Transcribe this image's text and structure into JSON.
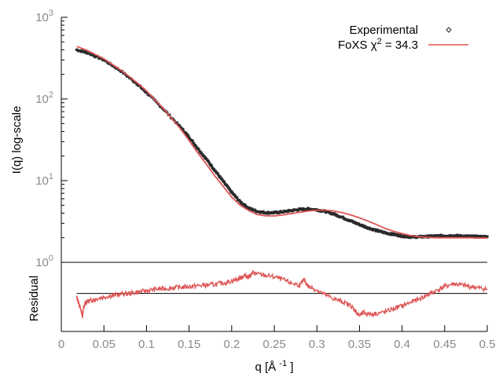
{
  "chart_data": [
    {
      "type": "scatter",
      "panel": "main",
      "ylabel": "I(q) log-scale",
      "xlim": [
        0,
        0.5
      ],
      "ylim": [
        1,
        1000
      ],
      "y_scale": "log",
      "y_tick_labels": [
        {
          "base": "10",
          "exp": "0"
        },
        {
          "base": "10",
          "exp": "1"
        },
        {
          "base": "10",
          "exp": "2"
        },
        {
          "base": "10",
          "exp": "3"
        }
      ],
      "legend_position": "top-right",
      "grid": false,
      "series": [
        {
          "name": "Experimental",
          "style": "points",
          "color": "#2a2a2a",
          "x": [
            0.018,
            0.03,
            0.05,
            0.07,
            0.09,
            0.1,
            0.12,
            0.14,
            0.15,
            0.16,
            0.17,
            0.18,
            0.19,
            0.2,
            0.21,
            0.22,
            0.23,
            0.24,
            0.25,
            0.26,
            0.27,
            0.28,
            0.29,
            0.3,
            0.31,
            0.32,
            0.33,
            0.34,
            0.35,
            0.36,
            0.37,
            0.38,
            0.39,
            0.4,
            0.41,
            0.42,
            0.43,
            0.44,
            0.45,
            0.46,
            0.47,
            0.48,
            0.49,
            0.5
          ],
          "y": [
            400,
            370,
            300,
            220,
            150,
            120,
            75,
            45,
            34,
            25,
            18.5,
            13.5,
            9.8,
            7.2,
            5.5,
            4.6,
            4.2,
            4.05,
            4.05,
            4.15,
            4.3,
            4.45,
            4.5,
            4.4,
            4.2,
            3.9,
            3.55,
            3.2,
            2.9,
            2.65,
            2.45,
            2.3,
            2.2,
            2.1,
            2.05,
            2.05,
            2.07,
            2.1,
            2.12,
            2.12,
            2.1,
            2.08,
            2.06,
            2.05
          ]
        },
        {
          "name": "FoXS χ2 = 34.3",
          "legend_label": "FoXS χ",
          "legend_superscript": "2",
          "legend_suffix": " = 34.3",
          "style": "line",
          "color": "#dd5555",
          "x": [
            0.018,
            0.03,
            0.05,
            0.07,
            0.09,
            0.1,
            0.12,
            0.14,
            0.15,
            0.16,
            0.17,
            0.18,
            0.19,
            0.2,
            0.21,
            0.22,
            0.23,
            0.24,
            0.25,
            0.26,
            0.27,
            0.28,
            0.29,
            0.3,
            0.31,
            0.32,
            0.33,
            0.34,
            0.35,
            0.36,
            0.37,
            0.38,
            0.39,
            0.4,
            0.41,
            0.42,
            0.43,
            0.44,
            0.45,
            0.46,
            0.47,
            0.48,
            0.49,
            0.5
          ],
          "y": [
            440,
            395,
            310,
            225,
            155,
            125,
            76,
            43,
            31,
            22,
            16,
            11.5,
            8.5,
            6.3,
            5.0,
            4.3,
            3.85,
            3.7,
            3.7,
            3.8,
            3.95,
            4.1,
            4.25,
            4.35,
            4.35,
            4.25,
            4.05,
            3.8,
            3.5,
            3.2,
            2.9,
            2.6,
            2.4,
            2.25,
            2.13,
            2.06,
            2.02,
            2.0,
            2.0,
            2.0,
            2.0,
            2.0,
            1.99,
            1.98
          ]
        }
      ]
    },
    {
      "type": "line",
      "panel": "residual",
      "xlabel": "q [Å -1 ]",
      "xlabel_base": "q [Å ",
      "xlabel_sup": "-1",
      "xlabel_suffix": " ]",
      "ylabel": "Residual",
      "xlim": [
        0,
        0.5
      ],
      "ylim": [
        -0.55,
        0.45
      ],
      "x_ticks": [
        0,
        0.05,
        0.1,
        0.15,
        0.2,
        0.25,
        0.3,
        0.35,
        0.4,
        0.45,
        0.5
      ],
      "x_tick_labels": [
        "0",
        "0.05",
        "0.1",
        "0.15",
        "0.2",
        "0.25",
        "0.3",
        "0.35",
        "0.4",
        "0.45",
        "0.5"
      ],
      "reference_line": 0,
      "reference_color": "#000000",
      "series": [
        {
          "style": "line",
          "color": "#dd5555",
          "x": [
            0.018,
            0.02,
            0.022,
            0.024,
            0.025,
            0.026,
            0.028,
            0.03,
            0.035,
            0.04,
            0.05,
            0.06,
            0.07,
            0.08,
            0.09,
            0.1,
            0.11,
            0.12,
            0.13,
            0.14,
            0.15,
            0.16,
            0.17,
            0.18,
            0.19,
            0.2,
            0.21,
            0.215,
            0.22,
            0.225,
            0.23,
            0.24,
            0.25,
            0.26,
            0.27,
            0.28,
            0.285,
            0.29,
            0.3,
            0.31,
            0.32,
            0.33,
            0.34,
            0.345,
            0.35,
            0.355,
            0.36,
            0.37,
            0.38,
            0.39,
            0.4,
            0.41,
            0.42,
            0.43,
            0.44,
            0.45,
            0.46,
            0.47,
            0.48,
            0.49,
            0.5
          ],
          "y": [
            -0.05,
            -0.12,
            -0.2,
            -0.28,
            -0.33,
            -0.22,
            -0.14,
            -0.12,
            -0.1,
            -0.08,
            -0.05,
            -0.03,
            -0.01,
            0.0,
            0.02,
            0.04,
            0.06,
            0.07,
            0.08,
            0.09,
            0.1,
            0.11,
            0.12,
            0.13,
            0.15,
            0.18,
            0.22,
            0.26,
            0.24,
            0.3,
            0.28,
            0.26,
            0.24,
            0.2,
            0.15,
            0.12,
            0.2,
            0.1,
            0.05,
            -0.02,
            -0.08,
            -0.12,
            -0.18,
            -0.25,
            -0.32,
            -0.28,
            -0.3,
            -0.29,
            -0.27,
            -0.22,
            -0.18,
            -0.13,
            -0.08,
            -0.02,
            0.04,
            0.1,
            0.14,
            0.12,
            0.1,
            0.08,
            0.06
          ]
        }
      ]
    }
  ]
}
